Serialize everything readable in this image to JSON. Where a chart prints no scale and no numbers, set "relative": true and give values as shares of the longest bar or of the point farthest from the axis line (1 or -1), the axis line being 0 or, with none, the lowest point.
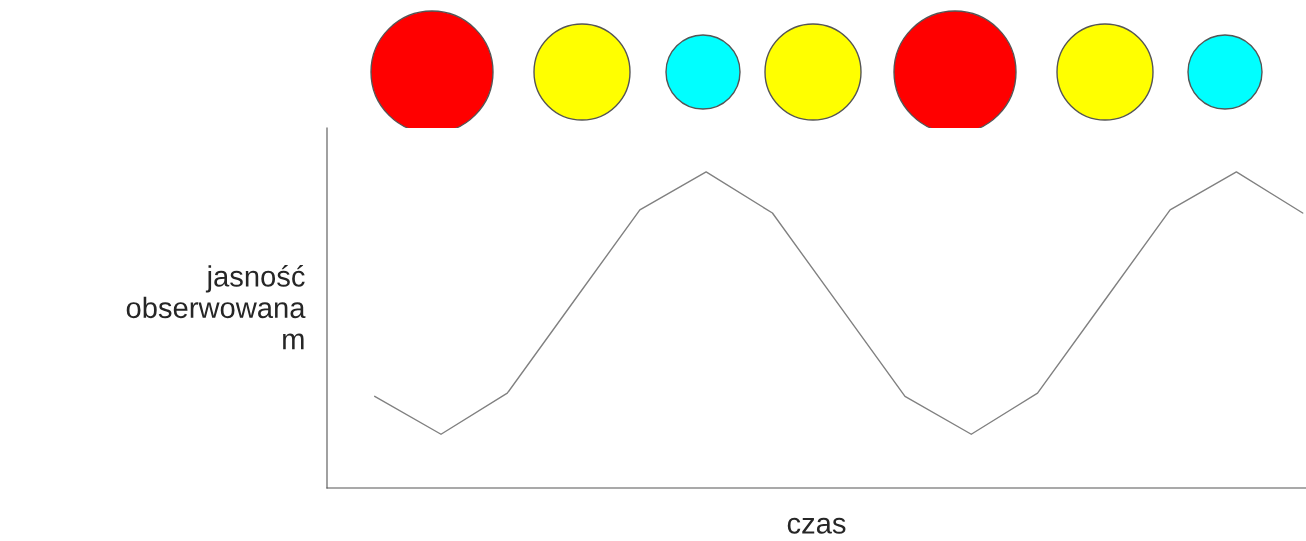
{
  "chart_data": {
    "type": "line",
    "relative": true,
    "xlabel": "czas",
    "ylabel": "jasność\nobserwowana\nm",
    "categories": [
      null,
      null,
      null,
      null,
      null,
      null,
      null,
      null,
      null,
      null,
      null,
      null,
      null,
      null,
      null
    ],
    "series": [
      {
        "color": "#808080",
        "values": [
          0.29,
          0.17,
          0.3,
          0.59,
          0.88,
          1.0,
          0.87,
          0.58,
          0.29,
          0.17,
          0.3,
          0.59,
          0.88,
          1.0,
          0.87
        ]
      }
    ]
  }
}
